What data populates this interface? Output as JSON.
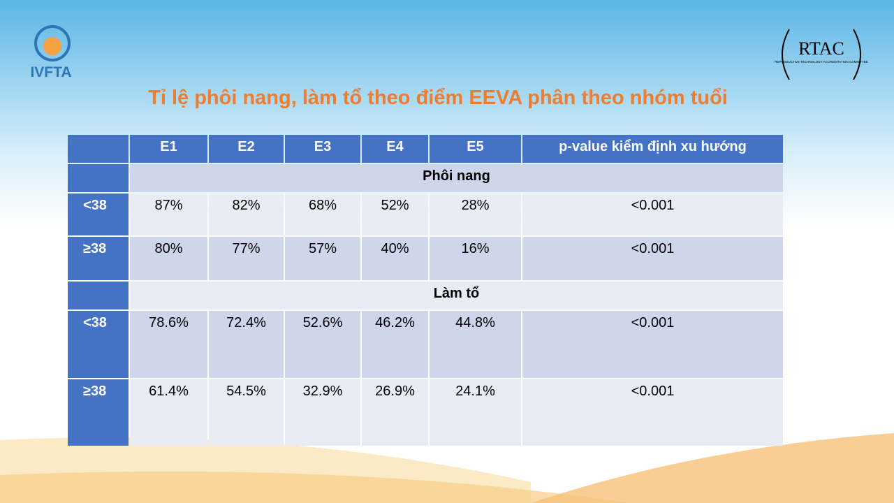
{
  "logos": {
    "left": "IVFTA",
    "right": "RTAC",
    "right_subtitle": "REPRODUCTIVE TECHNOLOGY ACCREDITATION COMMITTEE"
  },
  "title": "Tỉ lệ phôi nang, làm tổ theo điểm EEVA phân theo nhóm tuổi",
  "table": {
    "header": [
      "E1",
      "E2",
      "E3",
      "E4",
      "E5",
      "p-value kiểm định xu hướng"
    ],
    "sections": [
      {
        "label": "Phôi nang",
        "rows": [
          [
            "<38",
            "87%",
            "82%",
            "68%",
            "52%",
            "28%",
            "<0.001"
          ],
          [
            "≥38",
            "80%",
            "77%",
            "57%",
            "40%",
            "16%",
            "<0.001"
          ]
        ]
      },
      {
        "label": "Làm tổ",
        "rows": [
          [
            "<38",
            "78.6%",
            "72.4%",
            "52.6%",
            "46.2%",
            "44.8%",
            "<0.001"
          ],
          [
            "≥38",
            "61.4%",
            "54.5%",
            "32.9%",
            "26.9%",
            "24.1%",
            "<0.001"
          ]
        ]
      }
    ]
  }
}
